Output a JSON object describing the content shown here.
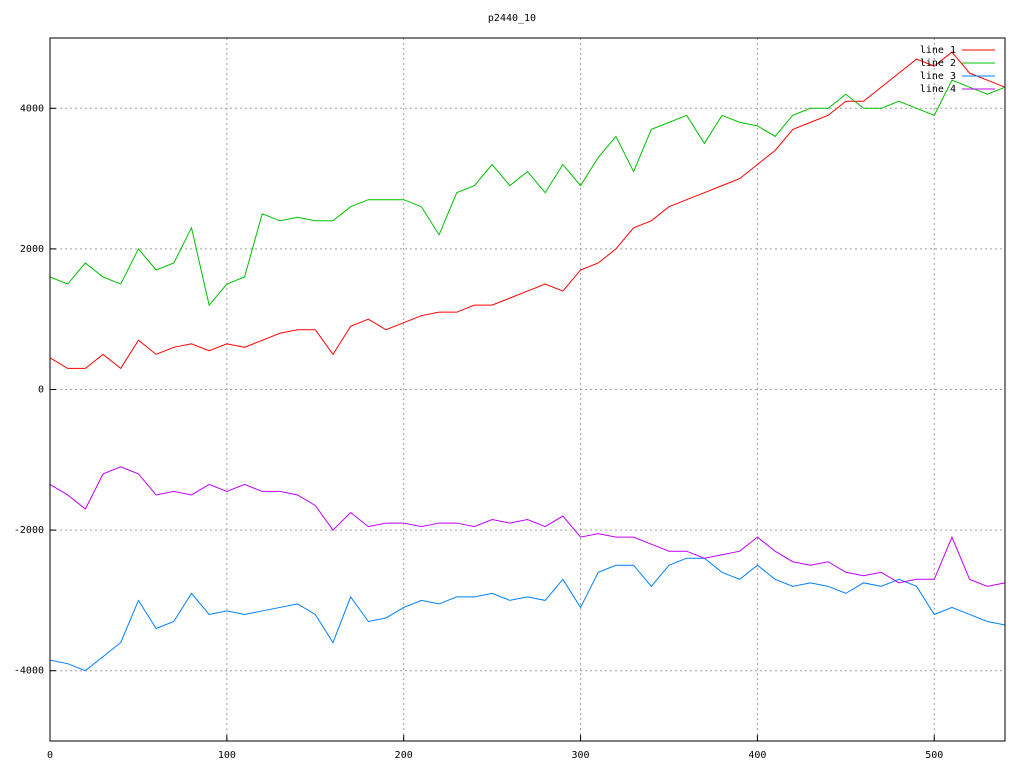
{
  "chart_data": {
    "type": "line",
    "title": "p2440_10",
    "x": [
      0,
      10,
      20,
      30,
      40,
      50,
      60,
      70,
      80,
      90,
      100,
      110,
      120,
      130,
      140,
      150,
      160,
      170,
      180,
      190,
      200,
      210,
      220,
      230,
      240,
      250,
      260,
      270,
      280,
      290,
      300,
      310,
      320,
      330,
      340,
      350,
      360,
      370,
      380,
      390,
      400,
      410,
      420,
      430,
      440,
      450,
      460,
      470,
      480,
      490,
      500,
      510,
      520,
      530,
      540
    ],
    "series": [
      {
        "name": "line 1",
        "color": "#ff0000",
        "values": [
          450,
          300,
          300,
          500,
          300,
          700,
          500,
          600,
          650,
          550,
          650,
          600,
          700,
          800,
          850,
          850,
          500,
          900,
          1000,
          850,
          950,
          1050,
          1100,
          1100,
          1200,
          1200,
          1300,
          1400,
          1500,
          1400,
          1700,
          1800,
          2000,
          2300,
          2400,
          2600,
          2700,
          2800,
          2900,
          3000,
          3200,
          3400,
          3700,
          3800,
          3900,
          4100,
          4100,
          4300,
          4500,
          4700,
          4600,
          4800,
          4500,
          4400,
          4300
        ]
      },
      {
        "name": "line 2",
        "color": "#00c000",
        "values": [
          1600,
          1500,
          1800,
          1600,
          1500,
          2000,
          1700,
          1800,
          2300,
          1200,
          1500,
          1600,
          2500,
          2400,
          2450,
          2400,
          2400,
          2600,
          2700,
          2700,
          2700,
          2600,
          2200,
          2800,
          2900,
          3200,
          2900,
          3100,
          2800,
          3200,
          2900,
          3300,
          3600,
          3100,
          3700,
          3800,
          3900,
          3500,
          3900,
          3800,
          3750,
          3600,
          3900,
          4000,
          4000,
          4200,
          4000,
          4000,
          4100,
          4000,
          3900,
          4400,
          4300,
          4200,
          4300
        ]
      },
      {
        "name": "line 3",
        "color": "#0080ff",
        "values": [
          -3850,
          -3900,
          -4000,
          -3800,
          -3600,
          -3000,
          -3400,
          -3300,
          -2900,
          -3200,
          -3150,
          -3200,
          -3150,
          -3100,
          -3050,
          -3200,
          -3600,
          -2950,
          -3300,
          -3250,
          -3100,
          -3000,
          -3050,
          -2950,
          -2950,
          -2900,
          -3000,
          -2950,
          -3000,
          -2700,
          -3100,
          -2600,
          -2500,
          -2500,
          -2800,
          -2500,
          -2400,
          -2400,
          -2600,
          -2700,
          -2500,
          -2700,
          -2800,
          -2750,
          -2800,
          -2900,
          -2750,
          -2800,
          -2700,
          -2800,
          -3200,
          -3100,
          -3200,
          -3300,
          -3350
        ]
      },
      {
        "name": "line 4",
        "color": "#c000ff",
        "values": [
          -1350,
          -1500,
          -1700,
          -1200,
          -1100,
          -1200,
          -1500,
          -1450,
          -1500,
          -1350,
          -1450,
          -1350,
          -1450,
          -1450,
          -1500,
          -1650,
          -2000,
          -1750,
          -1950,
          -1900,
          -1900,
          -1950,
          -1900,
          -1900,
          -1950,
          -1850,
          -1900,
          -1850,
          -1950,
          -1800,
          -2100,
          -2050,
          -2100,
          -2100,
          -2200,
          -2300,
          -2300,
          -2400,
          -2350,
          -2300,
          -2100,
          -2300,
          -2450,
          -2500,
          -2450,
          -2600,
          -2650,
          -2600,
          -2750,
          -2700,
          -2700,
          -2100,
          -2700,
          -2800,
          -2750
        ]
      }
    ],
    "xlim": [
      0,
      540
    ],
    "xticks": [
      0,
      100,
      200,
      300,
      400,
      500
    ],
    "ylim": [
      -5000,
      5000
    ],
    "yticks": [
      -4000,
      -2000,
      0,
      2000,
      4000
    ],
    "grid": true,
    "legend": "top-right"
  }
}
